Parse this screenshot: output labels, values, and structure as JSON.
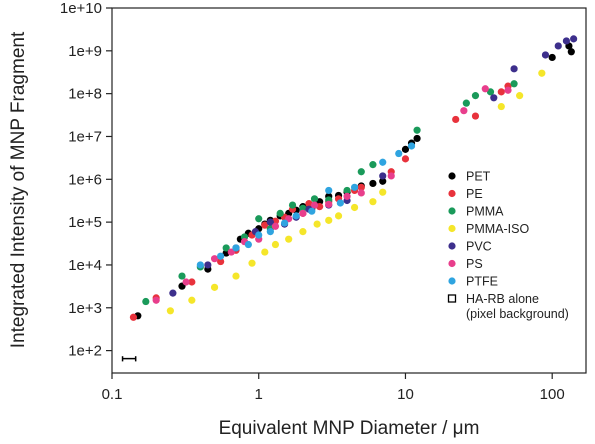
{
  "chart_data": {
    "type": "scatter",
    "xlabel": "Equivalent MNP Diameter / μm",
    "ylabel": "Integrated Intensity of MNP Fragment",
    "x_scale": "log",
    "y_scale": "log",
    "xlim": [
      0.1,
      170
    ],
    "ylim": [
      30,
      10000000000
    ],
    "x_ticks": [
      0.1,
      1,
      10,
      100
    ],
    "x_tick_labels": [
      "0.1",
      "1",
      "10",
      "100"
    ],
    "y_ticks": [
      100,
      1000,
      10000,
      100000,
      1000000,
      10000000,
      100000000,
      1000000000,
      10000000000
    ],
    "y_tick_labels": [
      "1e+2",
      "1e+3",
      "1e+4",
      "1e+5",
      "1e+6",
      "1e+7",
      "1e+8",
      "1e+9",
      "1e+10"
    ],
    "grid": false,
    "legend_position": "right",
    "series": [
      {
        "name": "PET",
        "color": "#000000",
        "points": [
          [
            0.15,
            650
          ],
          [
            0.3,
            3200
          ],
          [
            0.45,
            8000
          ],
          [
            0.6,
            19000
          ],
          [
            0.75,
            40000
          ],
          [
            0.85,
            55000
          ],
          [
            1.0,
            70000
          ],
          [
            1.1,
            90000
          ],
          [
            1.2,
            110000
          ],
          [
            1.4,
            140000
          ],
          [
            1.6,
            160000
          ],
          [
            1.8,
            190000
          ],
          [
            2.0,
            230000
          ],
          [
            2.3,
            210000
          ],
          [
            2.6,
            300000
          ],
          [
            3.0,
            400000
          ],
          [
            3.5,
            420000
          ],
          [
            4.0,
            500000
          ],
          [
            5.0,
            700000
          ],
          [
            6.0,
            800000
          ],
          [
            7.0,
            900000
          ],
          [
            10.0,
            5000000
          ],
          [
            11.0,
            7000000
          ],
          [
            12.0,
            9000000
          ],
          [
            130.0,
            1300000000
          ],
          [
            100.0,
            700000000
          ],
          [
            135.0,
            950000000
          ]
        ]
      },
      {
        "name": "PE",
        "color": "#e8323c",
        "points": [
          [
            0.14,
            600
          ],
          [
            0.2,
            1700
          ],
          [
            0.35,
            4000
          ],
          [
            0.55,
            12000
          ],
          [
            0.7,
            22000
          ],
          [
            0.9,
            50000
          ],
          [
            1.1,
            85000
          ],
          [
            1.3,
            105000
          ],
          [
            1.5,
            130000
          ],
          [
            1.7,
            200000
          ],
          [
            2.0,
            160000
          ],
          [
            2.2,
            270000
          ],
          [
            2.6,
            230000
          ],
          [
            3.0,
            300000
          ],
          [
            3.5,
            350000
          ],
          [
            4.5,
            550000
          ],
          [
            5.0,
            650000
          ],
          [
            8.0,
            1500000
          ],
          [
            10.0,
            3000000
          ],
          [
            22.0,
            25000000
          ],
          [
            30.0,
            30000000
          ],
          [
            45.0,
            110000000
          ],
          [
            50.0,
            150000000
          ]
        ]
      },
      {
        "name": "PMMA",
        "color": "#1a9a5a",
        "points": [
          [
            0.17,
            1400
          ],
          [
            0.3,
            5500
          ],
          [
            0.4,
            9000
          ],
          [
            0.6,
            25000
          ],
          [
            0.8,
            45000
          ],
          [
            1.0,
            120000
          ],
          [
            1.2,
            70000
          ],
          [
            1.4,
            160000
          ],
          [
            1.7,
            250000
          ],
          [
            2.0,
            210000
          ],
          [
            2.4,
            350000
          ],
          [
            3.0,
            330000
          ],
          [
            4.0,
            550000
          ],
          [
            5.0,
            1500000
          ],
          [
            6.0,
            2200000
          ],
          [
            12.0,
            14000000
          ],
          [
            26.0,
            60000000
          ],
          [
            30.0,
            90000000
          ],
          [
            38.0,
            110000000
          ],
          [
            55.0,
            170000000
          ]
        ]
      },
      {
        "name": "PMMA-ISO",
        "color": "#f5e62a",
        "points": [
          [
            0.25,
            850
          ],
          [
            0.35,
            1500
          ],
          [
            0.5,
            3000
          ],
          [
            0.7,
            5500
          ],
          [
            0.9,
            11000
          ],
          [
            1.1,
            20000
          ],
          [
            1.3,
            30000
          ],
          [
            1.6,
            40000
          ],
          [
            2.0,
            60000
          ],
          [
            2.5,
            90000
          ],
          [
            3.0,
            110000
          ],
          [
            3.5,
            140000
          ],
          [
            4.5,
            220000
          ],
          [
            6.0,
            300000
          ],
          [
            7.0,
            500000
          ],
          [
            45.0,
            50000000
          ],
          [
            60.0,
            90000000
          ],
          [
            85.0,
            300000000
          ]
        ]
      },
      {
        "name": "PVC",
        "color": "#3d2f8c",
        "points": [
          [
            0.26,
            2200
          ],
          [
            0.45,
            10000
          ],
          [
            0.7,
            25000
          ],
          [
            0.95,
            60000
          ],
          [
            1.2,
            100000
          ],
          [
            1.5,
            90000
          ],
          [
            1.8,
            130000
          ],
          [
            2.2,
            200000
          ],
          [
            3.0,
            250000
          ],
          [
            4.0,
            320000
          ],
          [
            7.0,
            1200000
          ],
          [
            40.0,
            80000000
          ],
          [
            55.0,
            380000000
          ],
          [
            90.0,
            800000000
          ],
          [
            110.0,
            1300000000
          ],
          [
            125.0,
            1700000000
          ],
          [
            140.0,
            1900000000
          ]
        ]
      },
      {
        "name": "PS",
        "color": "#e83e8c",
        "points": [
          [
            0.2,
            1500
          ],
          [
            0.32,
            4000
          ],
          [
            0.5,
            14000
          ],
          [
            0.65,
            20000
          ],
          [
            0.8,
            35000
          ],
          [
            1.0,
            40000
          ],
          [
            1.3,
            80000
          ],
          [
            1.6,
            120000
          ],
          [
            2.0,
            160000
          ],
          [
            2.4,
            250000
          ],
          [
            3.0,
            260000
          ],
          [
            4.0,
            400000
          ],
          [
            5.0,
            480000
          ],
          [
            8.0,
            1200000
          ],
          [
            25.0,
            40000000
          ],
          [
            35.0,
            130000000
          ],
          [
            50.0,
            120000000
          ]
        ]
      },
      {
        "name": "PTFE",
        "color": "#2fa4e0",
        "points": [
          [
            0.4,
            10000
          ],
          [
            0.55,
            16000
          ],
          [
            0.7,
            25000
          ],
          [
            0.85,
            30000
          ],
          [
            1.0,
            50000
          ],
          [
            1.2,
            60000
          ],
          [
            1.5,
            95000
          ],
          [
            1.8,
            140000
          ],
          [
            2.3,
            180000
          ],
          [
            3.0,
            550000
          ],
          [
            3.6,
            280000
          ],
          [
            4.5,
            650000
          ],
          [
            7.0,
            2500000
          ],
          [
            9.0,
            4000000
          ],
          [
            11.0,
            6000000
          ]
        ]
      },
      {
        "name": "HA-RB alone (pixel background)",
        "color": "#000000",
        "points": [
          [
            0.13,
            65
          ]
        ],
        "x_error": [
          0.118,
          0.145
        ],
        "y_error": [
          56,
          74
        ]
      }
    ],
    "legend_entries": [
      {
        "label": "PET",
        "color": "#000000"
      },
      {
        "label": "PE",
        "color": "#e8323c"
      },
      {
        "label": "PMMA",
        "color": "#1a9a5a"
      },
      {
        "label": "PMMA-ISO",
        "color": "#f5e62a"
      },
      {
        "label": "PVC",
        "color": "#3d2f8c"
      },
      {
        "label": "PS",
        "color": "#e83e8c"
      },
      {
        "label": "PTFE",
        "color": "#2fa4e0"
      },
      {
        "label": "HA-RB alone",
        "label2": "(pixel background)",
        "color": "#000000",
        "marker": "open-square"
      }
    ]
  }
}
